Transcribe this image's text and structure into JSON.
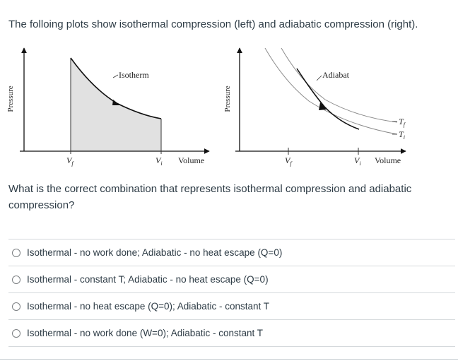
{
  "intro": "The folloing plots show isothermal compression (left) and adiabatic compression (right).",
  "left_plot": {
    "y_axis_label": "Pressure",
    "x_axis_label": "Volume",
    "curve_label": "Isotherm",
    "x_tick_final": "V",
    "x_tick_final_sub": "f",
    "x_tick_initial": "V",
    "x_tick_initial_sub": "i"
  },
  "right_plot": {
    "y_axis_label": "Pressure",
    "x_axis_label": "Volume",
    "curve_label": "Adiabat",
    "x_tick_final": "V",
    "x_tick_final_sub": "f",
    "x_tick_initial": "V",
    "x_tick_initial_sub": "i",
    "upper_isotherm_label": "T",
    "upper_isotherm_sub": "f",
    "lower_isotherm_label": "T",
    "lower_isotherm_sub": "i"
  },
  "question": "What is the correct combination that represents isothermal compression and adiabatic compression?",
  "options": [
    "Isothermal - no work done; Adiabatic - no heat escape (Q=0)",
    "Isothermal - constant T; Adiabatic - no heat escape (Q=0)",
    "Isothermal - no heat escape (Q=0); Adiabatic - constant T",
    "Isothermal - no work done (W=0); Adiabatic - constant T"
  ]
}
